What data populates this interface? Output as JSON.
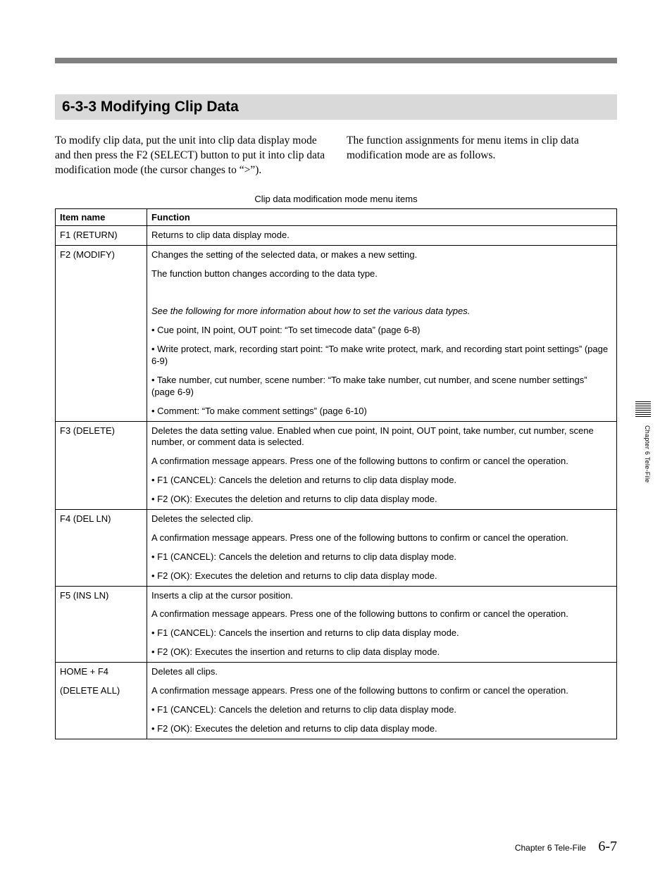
{
  "colors": {
    "top_bar": "#808080",
    "heading_bg": "#d9d9d9",
    "text": "#000000",
    "border": "#000000",
    "background": "#ffffff"
  },
  "heading": "6-3-3  Modifying Clip Data",
  "intro": {
    "left": "To modify clip data, put the unit into clip data display mode and then press the F2 (SELECT) button to put it into clip data modification mode (the cursor changes to “>”).",
    "right": "The function assignments for menu items in clip data modification mode are as follows."
  },
  "table": {
    "caption": "Clip data modification mode menu items",
    "columns": [
      "Item name",
      "Function"
    ],
    "rows": [
      {
        "item": "F1 (RETURN)",
        "fn": [
          {
            "t": "Returns to clip data display mode."
          }
        ]
      },
      {
        "item": "F2 (MODIFY)",
        "fn": [
          {
            "t": "Changes the setting of the selected data, or makes a new setting."
          },
          {
            "t": "The function button changes according to the data type."
          },
          {
            "t": "",
            "spacer": true
          },
          {
            "t": "See the following for more information about how to set the various data types.",
            "italic": true
          },
          {
            "t": "• Cue point, IN point, OUT point: “To set timecode data” (page 6-8)"
          },
          {
            "t": "• Write protect, mark, recording start point: “To make write protect, mark, and recording start point settings” (page 6-9)",
            "wrap": true
          },
          {
            "t": "• Take number, cut number, scene number: “To make take number, cut number, and scene number settings” (page 6-9)",
            "wrap": true
          },
          {
            "t": "• Comment: “To make comment settings” (page 6-10)"
          }
        ]
      },
      {
        "item": "F3 (DELETE)",
        "fn": [
          {
            "t": "Deletes the data setting value. Enabled when cue point, IN point, OUT point, take number, cut number, scene number, or comment data is selected."
          },
          {
            "t": "A confirmation message appears. Press one of the following buttons to confirm or cancel the operation."
          },
          {
            "t": "• F1 (CANCEL): Cancels the deletion and returns to clip data display mode."
          },
          {
            "t": "• F2 (OK): Executes the deletion and returns to clip data display mode."
          }
        ]
      },
      {
        "item": "F4 (DEL LN)",
        "fn": [
          {
            "t": "Deletes the selected clip."
          },
          {
            "t": "A confirmation message appears. Press one of the following buttons to confirm or cancel the operation."
          },
          {
            "t": "• F1 (CANCEL): Cancels the deletion and returns to clip data display mode."
          },
          {
            "t": "• F2 (OK): Executes the deletion and returns to clip data display mode."
          }
        ]
      },
      {
        "item": "F5 (INS LN)",
        "fn": [
          {
            "t": "Inserts a clip at the cursor position."
          },
          {
            "t": "A confirmation message appears. Press one of the following buttons to confirm or cancel the operation."
          },
          {
            "t": "• F1 (CANCEL): Cancels the insertion and returns to clip data display mode."
          },
          {
            "t": "• F2 (OK): Executes the insertion and returns to clip data display mode."
          }
        ]
      },
      {
        "item": "HOME + F4\n(DELETE ALL)",
        "fn": [
          {
            "t": "Deletes all clips."
          },
          {
            "t": "A confirmation message appears. Press one of the following buttons to confirm or cancel the operation."
          },
          {
            "t": "• F1 (CANCEL): Cancels the deletion and returns to clip data display mode."
          },
          {
            "t": "• F2 (OK): Executes the deletion and returns to clip data display mode."
          }
        ]
      }
    ]
  },
  "side_label": "Chapter 6   Tele-File",
  "footer": {
    "chapter": "Chapter 6   Tele-File",
    "page": "6-7"
  }
}
